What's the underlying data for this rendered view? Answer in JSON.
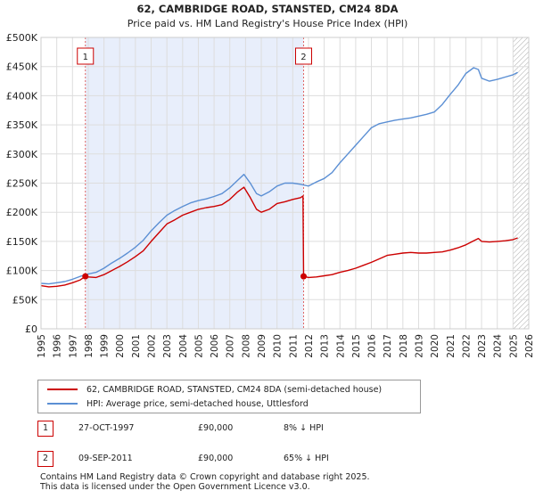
{
  "chart_data": {
    "type": "line",
    "title": "62, CAMBRIDGE ROAD, STANSTED, CM24 8DA",
    "subtitle": "Price paid vs. HM Land Registry's House Price Index (HPI)",
    "xlabel": "",
    "ylabel": "",
    "xlim": [
      1995,
      2026
    ],
    "ylim": [
      0,
      500000
    ],
    "y_ticks": [
      0,
      50000,
      100000,
      150000,
      200000,
      250000,
      300000,
      350000,
      400000,
      450000,
      500000
    ],
    "y_tick_labels": [
      "£0",
      "£50K",
      "£100K",
      "£150K",
      "£200K",
      "£250K",
      "£300K",
      "£350K",
      "£400K",
      "£450K",
      "£500K"
    ],
    "x_ticks": [
      1995,
      1996,
      1997,
      1998,
      1999,
      2000,
      2001,
      2002,
      2003,
      2004,
      2005,
      2006,
      2007,
      2008,
      2009,
      2010,
      2011,
      2012,
      2013,
      2014,
      2015,
      2016,
      2017,
      2018,
      2019,
      2020,
      2021,
      2022,
      2023,
      2024,
      2025,
      2026
    ],
    "x_tick_labels": [
      "1995",
      "1996",
      "1997",
      "1998",
      "1999",
      "2000",
      "2001",
      "2002",
      "2003",
      "2004",
      "2005",
      "2006",
      "2007",
      "2008",
      "2009",
      "2010",
      "2011",
      "2012",
      "2013",
      "2014",
      "2015",
      "2016",
      "2017",
      "2018",
      "2019",
      "2020",
      "2021",
      "2022",
      "2023",
      "2024",
      "2025",
      "2026"
    ],
    "grid": true,
    "shaded_period": [
      1997.82,
      2011.69
    ],
    "future_hatch_from": 2025.0,
    "series": [
      {
        "name": "62, CAMBRIDGE ROAD, STANSTED, CM24 8DA (semi-detached house)",
        "color": "#cc0000",
        "x": [
          1995.0,
          1995.5,
          1996.0,
          1996.5,
          1997.0,
          1997.5,
          1997.82,
          1998.0,
          1998.5,
          1999.0,
          1999.5,
          2000.0,
          2000.5,
          2001.0,
          2001.5,
          2002.0,
          2002.5,
          2003.0,
          2003.5,
          2004.0,
          2004.5,
          2005.0,
          2005.5,
          2006.0,
          2006.5,
          2007.0,
          2007.5,
          2007.9,
          2008.3,
          2008.7,
          2009.0,
          2009.5,
          2010.0,
          2010.5,
          2011.0,
          2011.5,
          2011.65,
          2011.69,
          2012.0,
          2012.5,
          2013.0,
          2013.5,
          2014.0,
          2014.5,
          2015.0,
          2015.5,
          2016.0,
          2016.5,
          2017.0,
          2017.5,
          2018.0,
          2018.5,
          2019.0,
          2019.5,
          2020.0,
          2020.5,
          2021.0,
          2021.5,
          2022.0,
          2022.5,
          2022.8,
          2023.0,
          2023.5,
          2024.0,
          2024.5,
          2025.0,
          2025.3
        ],
        "values": [
          74000,
          72000,
          73000,
          75000,
          79000,
          84000,
          90000,
          89000,
          88000,
          93000,
          100000,
          107000,
          115000,
          124000,
          134000,
          150000,
          165000,
          180000,
          187000,
          195000,
          200000,
          205000,
          208000,
          210000,
          213000,
          222000,
          235000,
          243000,
          225000,
          205000,
          200000,
          205000,
          215000,
          218000,
          222000,
          225000,
          228000,
          90000,
          88000,
          89000,
          91000,
          93000,
          97000,
          100000,
          104000,
          109000,
          114000,
          120000,
          126000,
          128000,
          130000,
          131000,
          130000,
          130000,
          131000,
          132000,
          135000,
          139000,
          144000,
          151000,
          155000,
          150000,
          149000,
          150000,
          151000,
          153000,
          156000
        ]
      },
      {
        "name": "HPI: Average price, semi-detached house, Uttlesford",
        "color": "#5b8fd4",
        "x": [
          1995.0,
          1995.5,
          1996.0,
          1996.5,
          1997.0,
          1997.5,
          1998.0,
          1998.5,
          1999.0,
          1999.5,
          2000.0,
          2000.5,
          2001.0,
          2001.5,
          2002.0,
          2002.5,
          2003.0,
          2003.5,
          2004.0,
          2004.5,
          2005.0,
          2005.5,
          2006.0,
          2006.5,
          2007.0,
          2007.5,
          2007.9,
          2008.3,
          2008.7,
          2009.0,
          2009.5,
          2010.0,
          2010.5,
          2011.0,
          2011.5,
          2012.0,
          2012.5,
          2013.0,
          2013.5,
          2014.0,
          2014.5,
          2015.0,
          2015.5,
          2016.0,
          2016.5,
          2017.0,
          2017.5,
          2018.0,
          2018.5,
          2019.0,
          2019.5,
          2020.0,
          2020.5,
          2021.0,
          2021.5,
          2022.0,
          2022.5,
          2022.8,
          2023.0,
          2023.5,
          2024.0,
          2024.5,
          2025.0,
          2025.3
        ],
        "values": [
          78000,
          77000,
          79000,
          81000,
          85000,
          90000,
          94000,
          97000,
          104000,
          113000,
          121000,
          130000,
          140000,
          152000,
          168000,
          182000,
          195000,
          203000,
          210000,
          216000,
          220000,
          223000,
          227000,
          232000,
          242000,
          255000,
          265000,
          250000,
          232000,
          228000,
          235000,
          245000,
          250000,
          250000,
          248000,
          245000,
          252000,
          258000,
          268000,
          285000,
          300000,
          315000,
          330000,
          345000,
          352000,
          355000,
          358000,
          360000,
          362000,
          365000,
          368000,
          372000,
          385000,
          402000,
          418000,
          438000,
          448000,
          445000,
          430000,
          425000,
          428000,
          432000,
          436000,
          440000
        ]
      }
    ],
    "annotations": [
      {
        "label": "1",
        "x": 1997.82,
        "value": 90000
      },
      {
        "label": "2",
        "x": 2011.69,
        "value": 90000
      }
    ]
  },
  "legend": {
    "property_label": "62, CAMBRIDGE ROAD, STANSTED, CM24 8DA (semi-detached house)",
    "hpi_label": "HPI: Average price, semi-detached house, Uttlesford",
    "property_color": "#cc0000",
    "hpi_color": "#5b8fd4"
  },
  "sales": [
    {
      "num": "1",
      "date": "27-OCT-1997",
      "price": "£90,000",
      "hpi": "8% ↓ HPI"
    },
    {
      "num": "2",
      "date": "09-SEP-2011",
      "price": "£90,000",
      "hpi": "65% ↓ HPI"
    }
  ],
  "footer": {
    "line1": "Contains HM Land Registry data © Crown copyright and database right 2025.",
    "line2": "This data is licensed under the Open Government Licence v3.0."
  }
}
